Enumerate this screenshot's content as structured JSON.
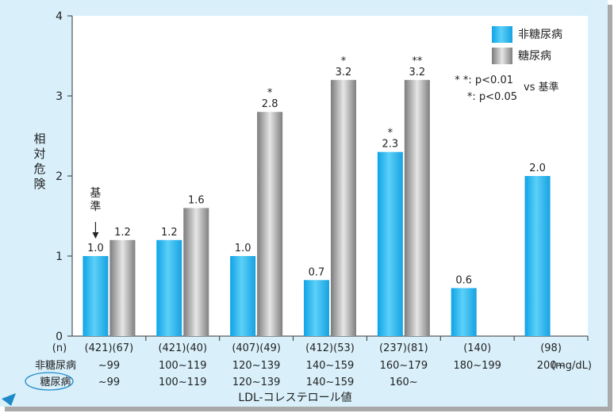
{
  "chart_data": {
    "type": "bar",
    "ylabel": "相対危険",
    "ylim": [
      0,
      4
    ],
    "yticks": [
      "0",
      "1",
      "2",
      "3",
      "4"
    ],
    "xlabel": "LDL-コレステロール値",
    "unit": "(mg/dL)",
    "grid": false,
    "legend_position": "top-right",
    "series": [
      {
        "name": "非糖尿病",
        "color": "#29b6ef",
        "values": [
          1.0,
          1.2,
          1.0,
          0.7,
          2.3,
          0.6,
          2.0
        ],
        "value_labels": [
          "1.0",
          "1.2",
          "1.0",
          "0.7",
          "2.3",
          "0.6",
          "2.0"
        ],
        "marks": [
          "",
          "",
          "",
          "",
          "*",
          "",
          ""
        ]
      },
      {
        "name": "糖尿病",
        "color": "#9a9a9a",
        "values": [
          1.2,
          1.6,
          2.8,
          3.2,
          3.2,
          null,
          null
        ],
        "value_labels": [
          "1.2",
          "1.6",
          "2.8",
          "3.2",
          "3.2",
          "",
          ""
        ],
        "marks": [
          "",
          "",
          "*",
          "*",
          "**",
          "",
          ""
        ]
      }
    ],
    "n_row_label": "(n)",
    "n_labels": [
      "(421)(67)",
      "(421)(40)",
      "(407)(49)",
      "(412)(53)",
      "(237)(81)",
      "(140)",
      "(98)"
    ],
    "row_nondiabetes_label": "非糖尿病",
    "row_nondiabetes": [
      "~99",
      "100~119",
      "120~139",
      "140~159",
      "160~179",
      "180~199",
      "200~"
    ],
    "row_diabetes_label": "糖尿病",
    "row_diabetes": [
      "~99",
      "100~119",
      "120~139",
      "140~159",
      "160~",
      "",
      ""
    ],
    "reference_label": "基準",
    "significance": {
      "line1": "* *: p<0.01",
      "line2": "*: p<0.05",
      "vs": "vs 基準"
    }
  },
  "colors": {
    "background": "#d9f0fb",
    "shadow": "#a9a9a9",
    "plot_bg": "#ffffff",
    "pointer": "#1e88c8"
  }
}
